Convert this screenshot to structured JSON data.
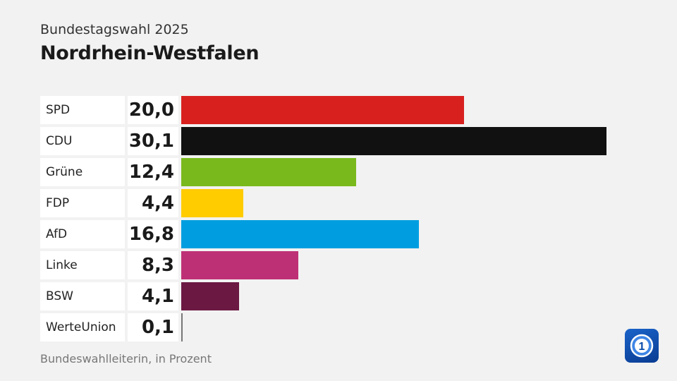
{
  "header": {
    "subtitle": "Bundestagswahl 2025",
    "title": "Nordrhein-Westfalen"
  },
  "footer": {
    "source": "Bundeswahlleiterin, in Prozent"
  },
  "logo": {
    "icon": "ard-tagesschau-logo-icon",
    "color": "#0a4aa8"
  },
  "chart_data": {
    "type": "bar",
    "orientation": "horizontal",
    "title": "Nordrhein-Westfalen",
    "subtitle": "Bundestagswahl 2025",
    "xlim": [
      0,
      30.1
    ],
    "grid": false,
    "categories": [
      "SPD",
      "CDU",
      "Grüne",
      "FDP",
      "AfD",
      "Linke",
      "BSW",
      "WerteUnion"
    ],
    "values": [
      20.0,
      30.1,
      12.4,
      4.4,
      16.8,
      8.3,
      4.1,
      0.1
    ],
    "value_labels": [
      "20,0",
      "30,1",
      "12,4",
      "4,4",
      "16,8",
      "8,3",
      "4,1",
      "0,1"
    ],
    "colors": [
      "#d8211f",
      "#111111",
      "#7ab91c",
      "#ffcc00",
      "#009ee0",
      "#be3075",
      "#6b1943",
      "#777777"
    ]
  }
}
